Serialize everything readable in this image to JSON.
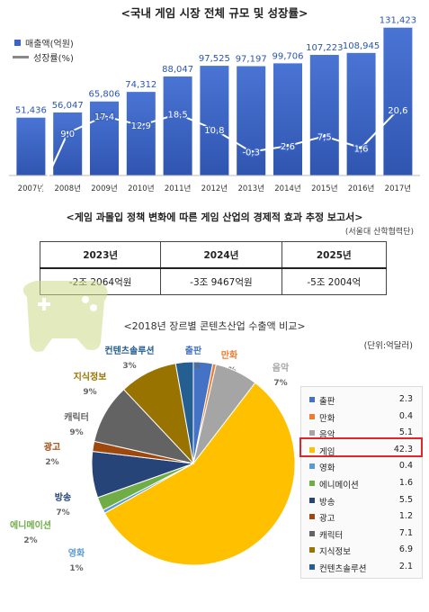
{
  "growth_chart": {
    "title": "<국내 게임 시장 전체 규모 및 성장률>",
    "legend": [
      {
        "label": "매출액(억원)",
        "color": "#3b64c4"
      },
      {
        "label": "성장률(%)",
        "color": "#888888"
      }
    ],
    "chart_data": {
      "type": "bar",
      "title": "<국내 게임 시장 전체 규모 및 성장률>",
      "categories": [
        "2007년",
        "2008년",
        "2009년",
        "2010년",
        "2011년",
        "2012년",
        "2013년",
        "2014년",
        "2015년",
        "2016년",
        "2017년"
      ],
      "series": [
        {
          "name": "매출액(억원)",
          "type": "bar",
          "values": [
            51436,
            56047,
            65806,
            74312,
            88047,
            97525,
            97197,
            99706,
            107223,
            108945,
            131423
          ],
          "labels": [
            "51,436",
            "56,047",
            "65,806",
            "74,312",
            "88,047",
            "97,525",
            "97,197",
            "99,706",
            "107,223",
            "108,945",
            "131,423"
          ]
        },
        {
          "name": "성장률(%)",
          "type": "line",
          "values": [
            -30.9,
            9.0,
            17.4,
            12.9,
            18.5,
            10.8,
            -0.3,
            2.6,
            7.5,
            1.6,
            20.6
          ],
          "labels": [
            "-30,9",
            "9,0",
            "17,4",
            "12,9",
            "18,5",
            "10,8",
            "-0,3",
            "2,6",
            "7,5",
            "1,6",
            "20,6"
          ]
        }
      ],
      "ylim": [
        0,
        140000
      ]
    }
  },
  "report": {
    "title": "<게임 과몰입 정책 변화에 따른 게임 산업의 경제적 효과 추정 보고서>",
    "source": "(서울대 산학협력단)",
    "headers": [
      "2023년",
      "2024년",
      "2025년"
    ],
    "values": [
      "-2조 2064억원",
      "-3조 9467억원",
      "-5조 2004억"
    ]
  },
  "pie_chart": {
    "title": "<2018년 장르별 콘텐츠산업 수출액 비교>",
    "unit": "(단위:억달러)",
    "chart_data": {
      "type": "pie",
      "title": "<2018년 장르별 콘텐츠산업 수출액 비교>",
      "slices": [
        {
          "name": "출판",
          "value": 2.3,
          "pct": "3%",
          "color": "#4472c4"
        },
        {
          "name": "만화",
          "value": 0.4,
          "pct": "1%",
          "color": "#ed7d31"
        },
        {
          "name": "음악",
          "value": 5.1,
          "pct": "7%",
          "color": "#a5a5a5"
        },
        {
          "name": "게임",
          "value": 42.3,
          "pct": "56%",
          "color": "#ffc000"
        },
        {
          "name": "영화",
          "value": 0.4,
          "pct": "1%",
          "color": "#5b9bd5"
        },
        {
          "name": "에니메이션",
          "value": 1.6,
          "pct": "2%",
          "color": "#70ad47"
        },
        {
          "name": "방송",
          "value": 5.5,
          "pct": "7%",
          "color": "#264478"
        },
        {
          "name": "광고",
          "value": 1.2,
          "pct": "2%",
          "color": "#9e480e"
        },
        {
          "name": "캐릭터",
          "value": 7.1,
          "pct": "9%",
          "color": "#636363"
        },
        {
          "name": "지식정보",
          "value": 6.9,
          "pct": "9%",
          "color": "#997300"
        },
        {
          "name": "컨텐츠솔루션",
          "value": 2.1,
          "pct": "3%",
          "color": "#255e91"
        }
      ],
      "legend_values": [
        "2.3",
        "0.4",
        "5.1",
        "42.3",
        "0.4",
        "1.6",
        "5.5",
        "1.2",
        "7.1",
        "6.9",
        "2.1"
      ],
      "highlighted": "게임"
    }
  }
}
